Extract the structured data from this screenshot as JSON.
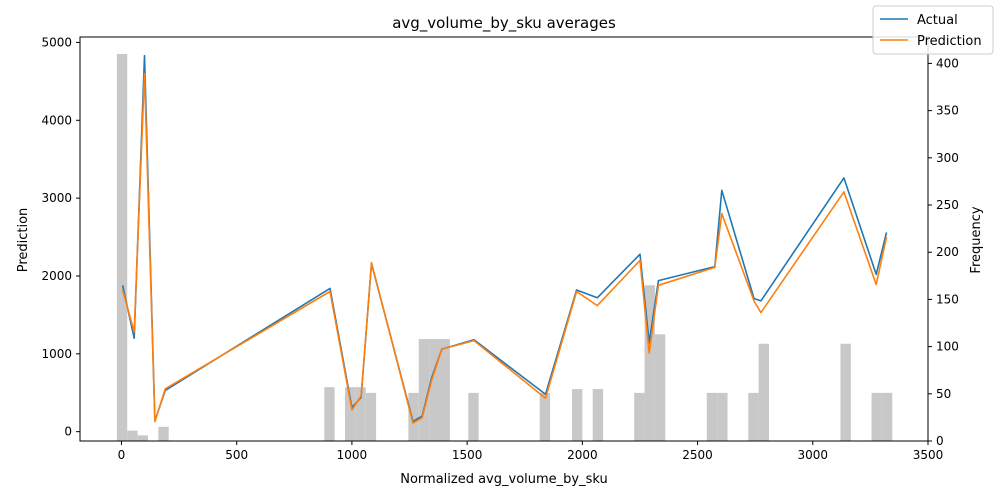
{
  "chart_data": {
    "type": "line",
    "title": "avg_volume_by_sku averages",
    "xlabel": "Normalized avg_volume_by_sku",
    "ylabel": "Prediction",
    "y2label": "Frequency",
    "xlim": [
      -180,
      3500
    ],
    "ylim": [
      -120,
      5070
    ],
    "y2lim": [
      0,
      428
    ],
    "x_ticks": [
      0,
      500,
      1000,
      1500,
      2000,
      2500,
      3000,
      3500
    ],
    "y_ticks": [
      0,
      1000,
      2000,
      3000,
      4000,
      5000
    ],
    "y2_ticks": [
      0,
      50,
      100,
      150,
      200,
      250,
      300,
      350,
      400
    ],
    "legend_position": "top-right",
    "grid": false,
    "series": [
      {
        "name": "Actual",
        "color": "#1f77b4",
        "x": [
          5,
          55,
          100,
          145,
          190,
          905,
          1000,
          1040,
          1085,
          1265,
          1305,
          1345,
          1390,
          1530,
          1840,
          1975,
          2065,
          2250,
          2290,
          2330,
          2575,
          2605,
          2745,
          2775,
          3135,
          3275,
          3320
        ],
        "y": [
          1880,
          1200,
          4830,
          140,
          530,
          1840,
          310,
          440,
          2160,
          130,
          200,
          680,
          1060,
          1180,
          480,
          1820,
          1720,
          2280,
          1140,
          1940,
          2120,
          3100,
          1710,
          1680,
          3260,
          2020,
          2560
        ]
      },
      {
        "name": "Prediction",
        "color": "#ff7f0e",
        "x": [
          5,
          55,
          100,
          145,
          190,
          905,
          1000,
          1040,
          1085,
          1265,
          1305,
          1345,
          1390,
          1530,
          1840,
          1975,
          2065,
          2250,
          2290,
          2330,
          2575,
          2605,
          2745,
          2775,
          3135,
          3275,
          3320
        ],
        "y": [
          1820,
          1280,
          4600,
          130,
          550,
          1800,
          280,
          460,
          2170,
          110,
          180,
          650,
          1060,
          1170,
          430,
          1800,
          1620,
          2200,
          1010,
          1880,
          2110,
          2800,
          1680,
          1530,
          3080,
          1890,
          2500
        ]
      }
    ],
    "histogram": {
      "name": "Frequency",
      "color": "#c8c8c8",
      "bins": [
        {
          "x0": -20,
          "x1": 25,
          "count": 410
        },
        {
          "x0": 25,
          "x1": 70,
          "count": 11
        },
        {
          "x0": 70,
          "x1": 115,
          "count": 6
        },
        {
          "x0": 160,
          "x1": 205,
          "count": 15
        },
        {
          "x0": 880,
          "x1": 925,
          "count": 57
        },
        {
          "x0": 970,
          "x1": 1015,
          "count": 57
        },
        {
          "x0": 1015,
          "x1": 1060,
          "count": 57
        },
        {
          "x0": 1060,
          "x1": 1105,
          "count": 51
        },
        {
          "x0": 1245,
          "x1": 1290,
          "count": 51
        },
        {
          "x0": 1290,
          "x1": 1335,
          "count": 108
        },
        {
          "x0": 1335,
          "x1": 1380,
          "count": 108
        },
        {
          "x0": 1380,
          "x1": 1425,
          "count": 108
        },
        {
          "x0": 1505,
          "x1": 1550,
          "count": 51
        },
        {
          "x0": 1815,
          "x1": 1860,
          "count": 51
        },
        {
          "x0": 1955,
          "x1": 2000,
          "count": 55
        },
        {
          "x0": 2045,
          "x1": 2090,
          "count": 55
        },
        {
          "x0": 2225,
          "x1": 2270,
          "count": 51
        },
        {
          "x0": 2270,
          "x1": 2315,
          "count": 165
        },
        {
          "x0": 2315,
          "x1": 2360,
          "count": 113
        },
        {
          "x0": 2540,
          "x1": 2585,
          "count": 51
        },
        {
          "x0": 2585,
          "x1": 2630,
          "count": 51
        },
        {
          "x0": 2720,
          "x1": 2765,
          "count": 51
        },
        {
          "x0": 2765,
          "x1": 2810,
          "count": 103
        },
        {
          "x0": 3120,
          "x1": 3165,
          "count": 103
        },
        {
          "x0": 3255,
          "x1": 3300,
          "count": 51
        },
        {
          "x0": 3300,
          "x1": 3345,
          "count": 51
        }
      ]
    }
  }
}
